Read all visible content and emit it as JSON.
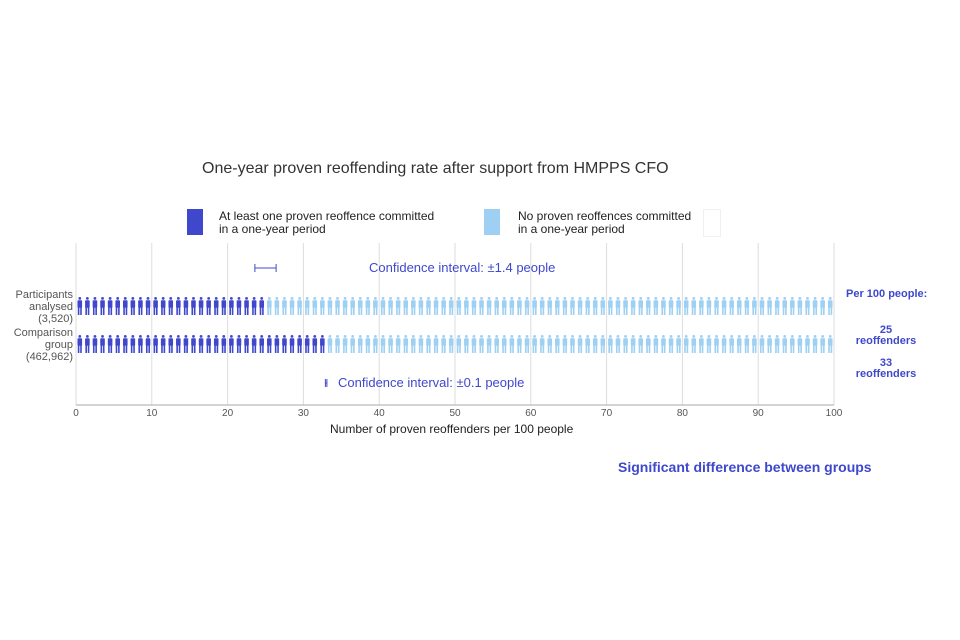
{
  "chart_data": {
    "type": "bar",
    "title": "One-year proven reoffending rate after support from HMPPS CFO",
    "xlabel": "Number of proven reoffenders per 100 people",
    "xlim": [
      0,
      100
    ],
    "xticks": [
      0,
      10,
      20,
      30,
      40,
      50,
      60,
      70,
      80,
      90,
      100
    ],
    "grid": true,
    "legend_position": "top",
    "legend": [
      {
        "name_line1": "At least one proven reoffence committed",
        "name_line2": "in a one-year period",
        "color": "#3f48cc"
      },
      {
        "name_line1": "No proven reoffences committed",
        "name_line2": "in a one-year period",
        "color": "#9dd0f2"
      }
    ],
    "categories": [
      {
        "label": [
          "Participants",
          "analysed",
          "(3,520)"
        ],
        "reoffenders_per_100": 25,
        "confidence_interval": "Confidence interval: ±1.4 people",
        "ci_plusminus": 1.4,
        "side_label": [
          "25",
          "reoffenders"
        ]
      },
      {
        "label": [
          "Comparison",
          "group",
          "(462,962)"
        ],
        "reoffenders_per_100": 33,
        "confidence_interval": "Confidence interval: ±0.1 people",
        "ci_plusminus": 0.1,
        "side_label": [
          "33",
          "reoffenders"
        ]
      }
    ],
    "side_header": "Per 100 people:",
    "footer": "Significant difference between groups",
    "colors": {
      "reoffend": "#3f48cc",
      "no_reoffend": "#9dd0f2",
      "accent_text": "#3f48cc",
      "grid": "#dddddd"
    }
  }
}
